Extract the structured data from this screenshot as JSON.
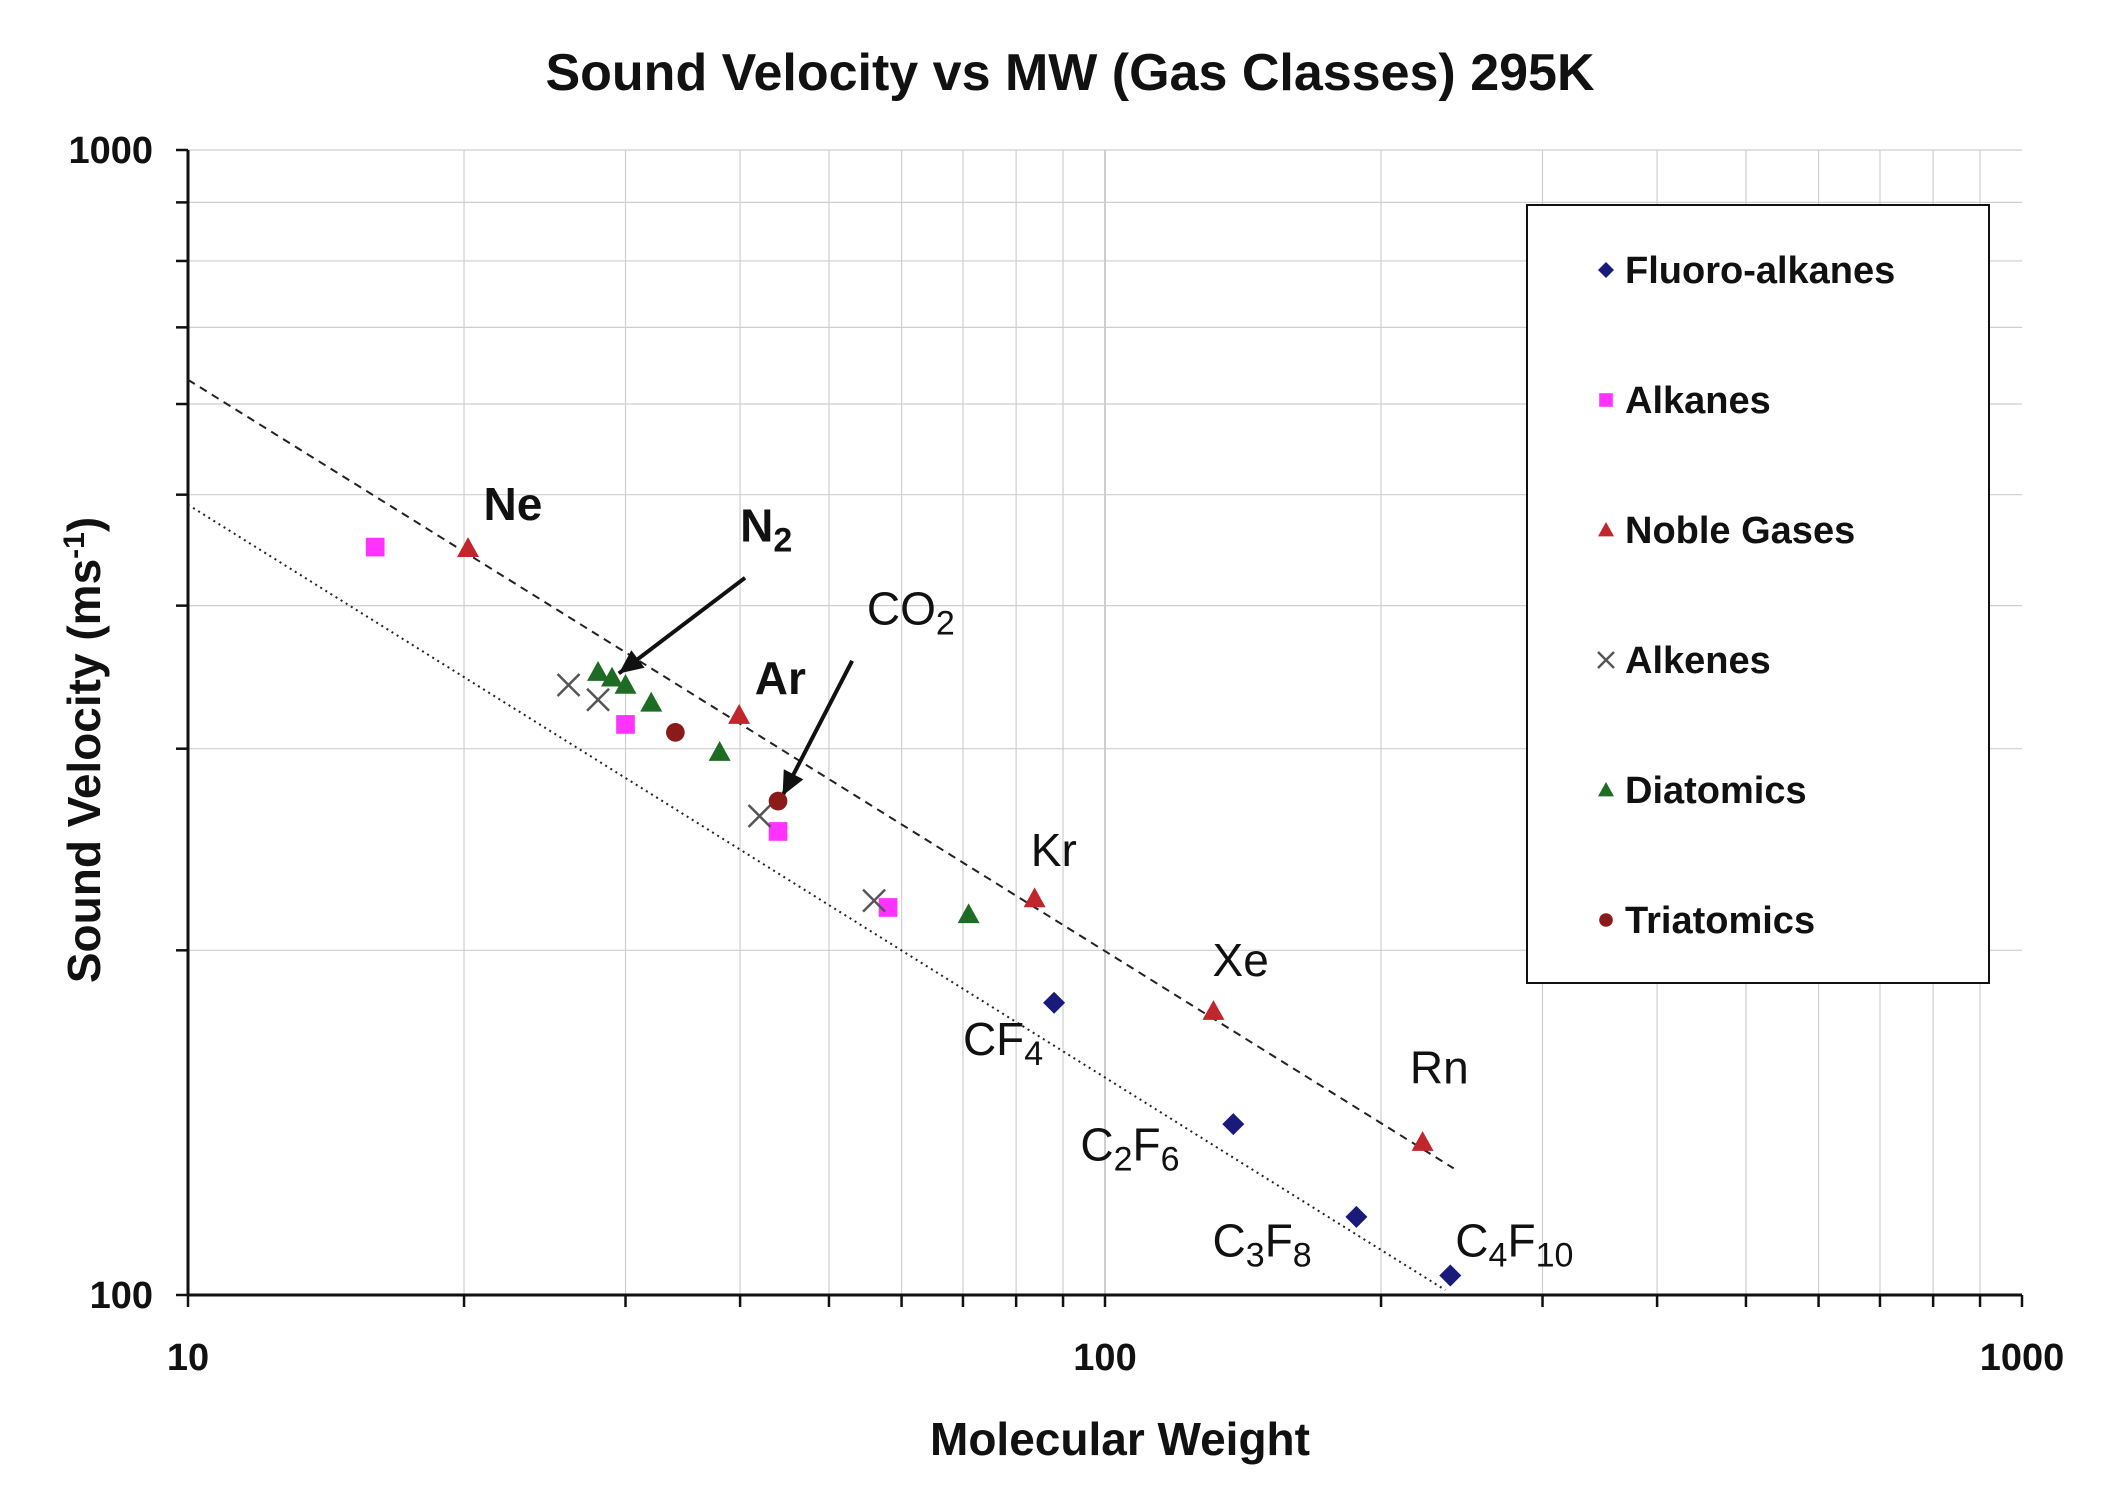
{
  "chart_data": {
    "type": "scatter",
    "title": "Sound Velocity vs MW (Gas Classes) 295K",
    "xlabel": "Molecular Weight",
    "ylabel": "Sound Velocity (ms-1)",
    "ylabel_main": "Sound Velocity (ms",
    "ylabel_sup": "-1",
    "ylabel_close": ")",
    "xscale": "log",
    "yscale": "log",
    "xlim": [
      10,
      1000
    ],
    "ylim": [
      100,
      1000
    ],
    "x_ticks": [
      {
        "value": 10,
        "label": "10"
      },
      {
        "value": 100,
        "label": "100"
      },
      {
        "value": 1000,
        "label": "1000"
      }
    ],
    "y_ticks": [
      {
        "value": 100,
        "label": "100"
      },
      {
        "value": 1000,
        "label": "1000"
      }
    ],
    "grid": true,
    "legend_position": "right",
    "series": [
      {
        "name": "Fluoro-alkanes",
        "marker": "diamond",
        "color": "#1a1a7a",
        "points": [
          {
            "x": 88,
            "y": 180
          },
          {
            "x": 138,
            "y": 141
          },
          {
            "x": 188,
            "y": 117
          },
          {
            "x": 238,
            "y": 104
          }
        ]
      },
      {
        "name": "Alkanes",
        "marker": "square",
        "color": "#ff33ff",
        "points": [
          {
            "x": 16,
            "y": 450
          },
          {
            "x": 30,
            "y": 315
          },
          {
            "x": 44,
            "y": 254
          },
          {
            "x": 58,
            "y": 218
          }
        ]
      },
      {
        "name": "Noble Gases",
        "marker": "triangle",
        "color": "#c0262c",
        "points": [
          {
            "x": 20.2,
            "y": 449
          },
          {
            "x": 39.9,
            "y": 321
          },
          {
            "x": 83.8,
            "y": 222
          },
          {
            "x": 131.3,
            "y": 177
          },
          {
            "x": 222,
            "y": 136
          }
        ]
      },
      {
        "name": "Alkenes",
        "marker": "x",
        "color": "#555555",
        "points": [
          {
            "x": 26,
            "y": 341
          },
          {
            "x": 28,
            "y": 331
          },
          {
            "x": 42,
            "y": 262
          },
          {
            "x": 56,
            "y": 221
          }
        ]
      },
      {
        "name": "Diatomics",
        "marker": "triangle",
        "color": "#1e6b24",
        "points": [
          {
            "x": 28,
            "y": 350
          },
          {
            "x": 29,
            "y": 346
          },
          {
            "x": 30,
            "y": 341
          },
          {
            "x": 32,
            "y": 329
          },
          {
            "x": 38,
            "y": 298
          },
          {
            "x": 71,
            "y": 215
          }
        ]
      },
      {
        "name": "Triatomics",
        "marker": "circle",
        "color": "#8b1a1a",
        "points": [
          {
            "x": 34,
            "y": 310
          },
          {
            "x": 44,
            "y": 270
          }
        ]
      }
    ],
    "trendlines": [
      {
        "name": "noble-gas-fit",
        "style": "dashed",
        "from": {
          "x": 10,
          "y": 630
        },
        "to": {
          "x": 240,
          "y": 129
        }
      },
      {
        "name": "fluoroalkane-fit",
        "style": "dotted",
        "from": {
          "x": 10,
          "y": 490
        },
        "to": {
          "x": 235,
          "y": 101
        }
      }
    ],
    "annotations": [
      {
        "id": "ne",
        "text": "Ne",
        "sub": "",
        "after": "",
        "x": 21,
        "y": 475,
        "bold": true
      },
      {
        "id": "n2",
        "text": "N",
        "sub": "2",
        "after": "",
        "x": 40,
        "y": 455,
        "bold": true
      },
      {
        "id": "ar",
        "text": "Ar",
        "sub": "",
        "after": "",
        "x": 41.5,
        "y": 335,
        "bold": true
      },
      {
        "id": "co2",
        "text": "CO",
        "sub": "2",
        "after": "",
        "x": 55,
        "y": 385,
        "bold": false
      },
      {
        "id": "kr",
        "text": "Kr",
        "sub": "",
        "after": "",
        "x": 83,
        "y": 237,
        "bold": false
      },
      {
        "id": "xe",
        "text": "Xe",
        "sub": "",
        "after": "",
        "x": 131,
        "y": 190,
        "bold": false
      },
      {
        "id": "rn",
        "text": "Rn",
        "sub": "",
        "after": "",
        "x": 215,
        "y": 153,
        "bold": false
      },
      {
        "id": "cf4",
        "text": "CF",
        "sub": "4",
        "after": "",
        "x": 70,
        "y": 162,
        "bold": false
      },
      {
        "id": "c2f6",
        "text": "C",
        "sub": "2",
        "after": "F",
        "sub2": "6",
        "x": 94,
        "y": 131,
        "bold": false
      },
      {
        "id": "c3f8",
        "text": "C",
        "sub": "3",
        "after": "F",
        "sub2": "8",
        "x": 131,
        "y": 108,
        "bold": false
      },
      {
        "id": "c4f10",
        "text": "C",
        "sub": "4",
        "after": "F",
        "sub2": "10",
        "x": 241,
        "y": 108,
        "bold": false
      }
    ],
    "arrows": [
      {
        "name": "n2-arrow",
        "from": {
          "x": 40.5,
          "y": 423
        },
        "to": {
          "x": 29.5,
          "y": 349
        }
      },
      {
        "name": "co2-arrow",
        "from": {
          "x": 53,
          "y": 358
        },
        "to": {
          "x": 44.5,
          "y": 273
        }
      }
    ]
  }
}
